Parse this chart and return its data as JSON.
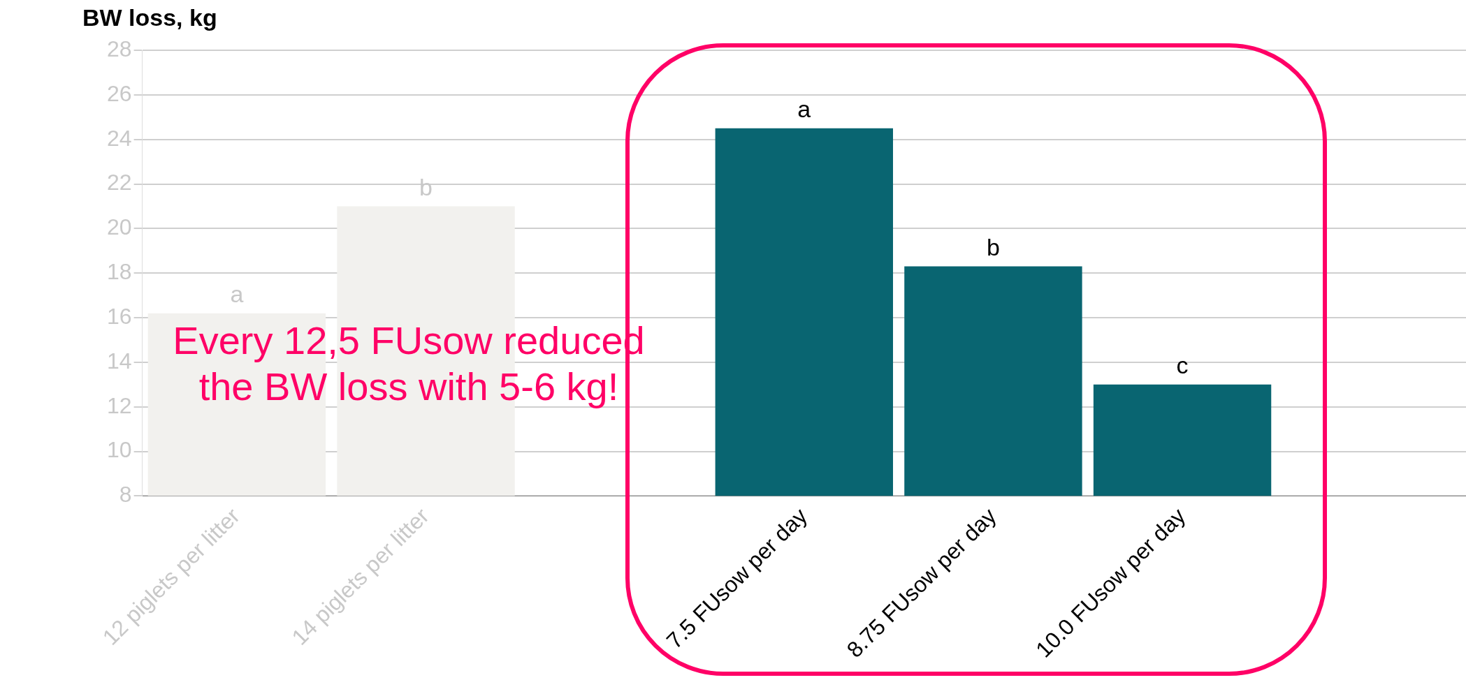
{
  "chart_data": {
    "type": "bar",
    "ylabel": "BW loss, kg",
    "categories": [
      "12 piglets per litter",
      "14 piglets per litter",
      null,
      "7.5 FUsow per day",
      "8.75 FUsow per day",
      "10.0 FUsow per day",
      null
    ],
    "values": [
      16.2,
      21.0,
      null,
      24.5,
      18.3,
      13.0,
      null
    ],
    "colors": [
      "#f2f1ee",
      "#f2f1ee",
      "#f2f1ee",
      "#096571",
      "#096571",
      "#096571",
      "#096571"
    ],
    "value_labels": [
      "a",
      "b",
      null,
      "a",
      "b",
      "c",
      null
    ],
    "ylim": [
      8,
      28
    ],
    "yticks": [
      8,
      10,
      12,
      14,
      16,
      18,
      20,
      22,
      24,
      26,
      28
    ],
    "grid": "y",
    "legend": false,
    "annotations": [
      "Every 12,5 FUsow reduced the BW loss with 5-6 kg!"
    ]
  }
}
